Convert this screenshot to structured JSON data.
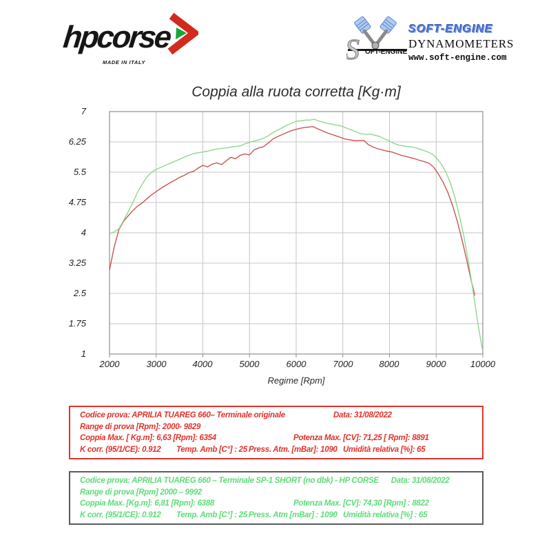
{
  "branding": {
    "hpcorse": {
      "wordmark": "hpcorse",
      "tagline": "MADE IN ITALY"
    },
    "softengine": {
      "name": "SOFT-ENGINE",
      "subtitle": "DYNAMOMETERS",
      "website": "www.soft-engine.com",
      "wordmark_s": "S",
      "wordmark_rest": "OFT-ENGINE"
    }
  },
  "chart_data": {
    "type": "line",
    "title": "Coppia alla ruota corretta [Kg·m]",
    "xlabel": "Regime [Rpm]",
    "ylabel": "",
    "xlim": [
      2000,
      10000
    ],
    "ylim": [
      1,
      7
    ],
    "x_ticks": [
      "2000",
      "3000",
      "4000",
      "5000",
      "6000",
      "7000",
      "8000",
      "9000",
      "10000"
    ],
    "y_ticks": [
      "7",
      "6.25",
      "5.5",
      "4.75",
      "4",
      "3.25",
      "2.5",
      "1.75",
      "1"
    ],
    "grid": true,
    "legend_position": "none",
    "series": [
      {
        "id": "originale",
        "name": "APRILIA TUAREG 660 - Terminale originale",
        "color": "#c9544e",
        "x": [
          2000,
          2100,
          2200,
          2300,
          2400,
          2500,
          2600,
          2700,
          2800,
          2900,
          3000,
          3100,
          3200,
          3300,
          3400,
          3500,
          3600,
          3700,
          3800,
          3900,
          4000,
          4100,
          4200,
          4300,
          4400,
          4500,
          4600,
          4700,
          4800,
          4900,
          5000,
          5100,
          5200,
          5300,
          5400,
          5500,
          5600,
          5700,
          5800,
          5900,
          6000,
          6100,
          6200,
          6300,
          6354,
          6450,
          6550,
          6650,
          6750,
          6850,
          6950,
          7050,
          7150,
          7250,
          7350,
          7450,
          7550,
          7650,
          7750,
          7850,
          7950,
          8050,
          8150,
          8250,
          8350,
          8450,
          8550,
          8650,
          8750,
          8850,
          8950,
          9050,
          9150,
          9250,
          9350,
          9450,
          9550,
          9650,
          9750,
          9829
        ],
        "values": [
          3.08,
          3.65,
          4.08,
          4.28,
          4.42,
          4.55,
          4.66,
          4.74,
          4.84,
          4.94,
          5.02,
          5.1,
          5.17,
          5.24,
          5.3,
          5.37,
          5.42,
          5.49,
          5.52,
          5.6,
          5.67,
          5.63,
          5.7,
          5.73,
          5.69,
          5.78,
          5.87,
          5.83,
          5.92,
          5.95,
          5.93,
          6.05,
          6.1,
          6.13,
          6.22,
          6.32,
          6.38,
          6.43,
          6.48,
          6.53,
          6.56,
          6.59,
          6.61,
          6.62,
          6.63,
          6.58,
          6.53,
          6.48,
          6.44,
          6.4,
          6.36,
          6.32,
          6.3,
          6.28,
          6.28,
          6.29,
          6.18,
          6.12,
          6.08,
          6.05,
          6.02,
          6.0,
          5.96,
          5.92,
          5.89,
          5.86,
          5.83,
          5.79,
          5.76,
          5.72,
          5.62,
          5.45,
          5.25,
          5.0,
          4.68,
          4.3,
          3.85,
          3.35,
          2.82,
          2.45
        ]
      },
      {
        "id": "sp1-short",
        "name": "APRILIA TUAREG 660 - Terminale SP-1 SHORT (no dbk) - HP CORSE",
        "color": "#8dd88d",
        "x": [
          2000,
          2100,
          2200,
          2300,
          2400,
          2500,
          2600,
          2700,
          2800,
          2900,
          3000,
          3100,
          3200,
          3300,
          3400,
          3500,
          3600,
          3700,
          3800,
          3900,
          4000,
          4100,
          4200,
          4300,
          4400,
          4500,
          4600,
          4700,
          4800,
          4900,
          5000,
          5100,
          5200,
          5300,
          5400,
          5500,
          5600,
          5700,
          5800,
          5900,
          6000,
          6100,
          6200,
          6300,
          6388,
          6500,
          6600,
          6700,
          6800,
          6900,
          7000,
          7100,
          7200,
          7300,
          7400,
          7500,
          7600,
          7700,
          7800,
          7900,
          8000,
          8100,
          8200,
          8300,
          8400,
          8500,
          8600,
          8700,
          8800,
          8900,
          9000,
          9100,
          9200,
          9300,
          9400,
          9500,
          9600,
          9700,
          9800,
          9900,
          9992
        ],
        "values": [
          3.98,
          4.02,
          4.1,
          4.3,
          4.52,
          4.75,
          5.0,
          5.2,
          5.38,
          5.5,
          5.57,
          5.62,
          5.67,
          5.72,
          5.77,
          5.82,
          5.87,
          5.92,
          5.96,
          5.98,
          6.0,
          6.02,
          6.05,
          6.07,
          6.09,
          6.1,
          6.12,
          6.14,
          6.15,
          6.2,
          6.24,
          6.27,
          6.3,
          6.34,
          6.4,
          6.48,
          6.54,
          6.6,
          6.66,
          6.71,
          6.76,
          6.77,
          6.79,
          6.79,
          6.81,
          6.76,
          6.73,
          6.7,
          6.68,
          6.66,
          6.63,
          6.58,
          6.54,
          6.49,
          6.45,
          6.44,
          6.44,
          6.41,
          6.38,
          6.32,
          6.27,
          6.21,
          6.17,
          6.15,
          6.13,
          6.12,
          6.09,
          6.05,
          6.01,
          5.96,
          5.86,
          5.72,
          5.52,
          5.25,
          4.88,
          4.42,
          3.88,
          3.22,
          2.5,
          1.72,
          1.1
        ]
      }
    ]
  },
  "result_boxes": [
    {
      "id": "originale",
      "text_color": "#e2322a",
      "border_color": "#e2322a",
      "line1_left": "Codice prova: APRILIA TUAREG 660– Terminale originale",
      "line1_right": "Data: 31/08/2022",
      "line2": "Range di prova [Rpm]: 2000- 9829",
      "line3_left": "Coppia Max. [ Kg.m]: 6,63 [Rpm]: 6354",
      "line3_right": "Potenza Max. [CV]: 71,25 [ Rpm]: 8891",
      "line4_a": "K corr. (95/1/CE): 0.912",
      "line4_b": "Temp. Amb [C°] : 25",
      "line4_c": "Press. Atm. [mBar]: 1090",
      "line4_d": "Umidità relativa [%]: 65"
    },
    {
      "id": "sp1-short",
      "text_color": "#5ddc77",
      "border_color": "#5a5a5a",
      "line1_left": "Codice prova: APRILIA TUAREG 660 – Terminale SP-1 SHORT (no dbk) - HP CORSE",
      "line1_right": "Data: 31/08/2022",
      "line2": "Range di prova [Rpm] 2000 – 9992",
      "line3_left": "Coppia Max. [Kg.m]: 6,81 [Rpm]: 6388",
      "line3_right": "Potenza Max. [CV]: 74,30 [Rpm] : 8822",
      "line4_a": "K corr. (95/1/CE): 0.912",
      "line4_b": "Temp. Amb [C°] : 25",
      "line4_c": "Press. Atm [mBar] : 1090",
      "line4_d": "Umidità relativa [%] : 65"
    }
  ]
}
